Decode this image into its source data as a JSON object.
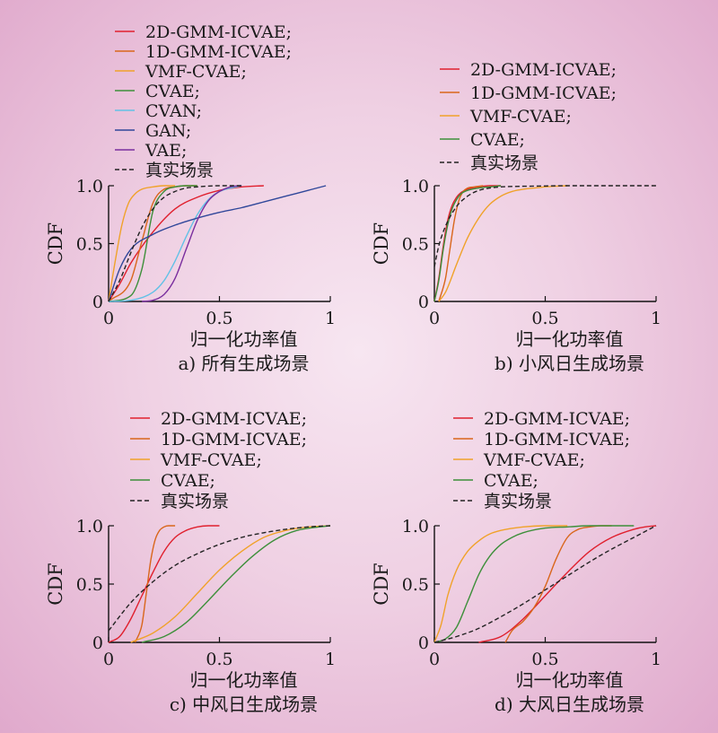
{
  "figure": {
    "colors": {
      "2D-GMM-ICVAE": "#e0202e",
      "1D-GMM-ICVAE": "#d9661b",
      "VMF-CVAE": "#f0a22a",
      "CVAE": "#3d8f3a",
      "CVAN": "#62c1e6",
      "GAN": "#30479a",
      "VAE": "#7a2e9e",
      "real": "#222222"
    }
  },
  "chart_data": [
    {
      "type": "line",
      "caption": "a) 所有生成场景",
      "xlabel": "归一化功率值",
      "ylabel": "CDF",
      "xlim": [
        0,
        1
      ],
      "ylim": [
        0,
        1
      ],
      "x_ticks": [
        "0",
        "0.5",
        "1"
      ],
      "y_ticks": [
        "0",
        "0.5",
        "1.0"
      ],
      "legend": [
        "2D-GMM-ICVAE;",
        "1D-GMM-ICVAE;",
        "VMF-CVAE;",
        "CVAE;",
        "CVAN;",
        "GAN;",
        "VAE;",
        "真实场景"
      ],
      "grid": false,
      "series": [
        {
          "name": "2D-GMM-ICVAE",
          "x": [
            0,
            0.05,
            0.1,
            0.2,
            0.3,
            0.4,
            0.5,
            0.6,
            0.7
          ],
          "y": [
            0,
            0.15,
            0.33,
            0.6,
            0.8,
            0.9,
            0.96,
            0.99,
            1
          ]
        },
        {
          "name": "1D-GMM-ICVAE",
          "x": [
            0,
            0.1,
            0.15,
            0.2,
            0.25,
            0.3,
            0.35,
            0.4
          ],
          "y": [
            0,
            0.18,
            0.52,
            0.85,
            0.97,
            0.99,
            1,
            1
          ]
        },
        {
          "name": "VMF-CVAE",
          "x": [
            0,
            0.03,
            0.06,
            0.09,
            0.12,
            0.15,
            0.2,
            0.25,
            0.3
          ],
          "y": [
            0,
            0.35,
            0.66,
            0.85,
            0.93,
            0.97,
            0.99,
            1,
            1
          ]
        },
        {
          "name": "CVAE",
          "x": [
            0,
            0.1,
            0.15,
            0.2,
            0.25,
            0.3,
            0.35,
            0.4
          ],
          "y": [
            0,
            0.05,
            0.28,
            0.78,
            0.95,
            0.99,
            1,
            1
          ]
        },
        {
          "name": "CVAN",
          "x": [
            0,
            0.1,
            0.2,
            0.25,
            0.3,
            0.35,
            0.4,
            0.45,
            0.5,
            0.6
          ],
          "y": [
            0,
            0.01,
            0.08,
            0.18,
            0.35,
            0.56,
            0.75,
            0.88,
            0.95,
            1
          ]
        },
        {
          "name": "GAN",
          "x": [
            0,
            0.05,
            0.1,
            0.2,
            0.3,
            0.4,
            0.5,
            0.6,
            0.7,
            0.8,
            0.9,
            0.98
          ],
          "y": [
            0,
            0.28,
            0.45,
            0.58,
            0.66,
            0.72,
            0.77,
            0.81,
            0.86,
            0.91,
            0.96,
            1
          ]
        },
        {
          "name": "VAE",
          "x": [
            0.15,
            0.2,
            0.25,
            0.3,
            0.35,
            0.4,
            0.45,
            0.5,
            0.55,
            0.6
          ],
          "y": [
            0,
            0.01,
            0.06,
            0.2,
            0.45,
            0.7,
            0.87,
            0.95,
            0.99,
            1
          ]
        },
        {
          "name": "真实场景",
          "x": [
            0,
            0.05,
            0.1,
            0.15,
            0.2,
            0.25,
            0.3,
            0.35,
            0.4,
            0.5,
            0.6
          ],
          "y": [
            0,
            0.18,
            0.42,
            0.64,
            0.8,
            0.9,
            0.95,
            0.98,
            0.99,
            1,
            1
          ]
        }
      ]
    },
    {
      "type": "line",
      "caption": "b) 小风日生成场景",
      "xlabel": "归一化功率值",
      "ylabel": "CDF",
      "xlim": [
        0,
        1
      ],
      "ylim": [
        0,
        1
      ],
      "x_ticks": [
        "0",
        "0.5",
        "1"
      ],
      "y_ticks": [
        "0",
        "0.5",
        "1.0"
      ],
      "legend": [
        "2D-GMM-ICVAE;",
        "1D-GMM-ICVAE;",
        "VMF-CVAE;",
        "CVAE;",
        "真实场景"
      ],
      "grid": false,
      "series": [
        {
          "name": "2D-GMM-ICVAE",
          "x": [
            0,
            0.02,
            0.04,
            0.06,
            0.08,
            0.1,
            0.12,
            0.15,
            0.2,
            0.25,
            0.3
          ],
          "y": [
            0,
            0.2,
            0.48,
            0.7,
            0.83,
            0.9,
            0.94,
            0.97,
            0.99,
            1,
            1
          ]
        },
        {
          "name": "1D-GMM-ICVAE",
          "x": [
            0.02,
            0.05,
            0.07,
            0.09,
            0.11,
            0.13,
            0.15,
            0.18,
            0.22
          ],
          "y": [
            0,
            0.2,
            0.45,
            0.7,
            0.87,
            0.95,
            0.98,
            0.99,
            1
          ]
        },
        {
          "name": "VMF-CVAE",
          "x": [
            0.02,
            0.05,
            0.1,
            0.15,
            0.2,
            0.25,
            0.3,
            0.35,
            0.4,
            0.45,
            0.5,
            0.6
          ],
          "y": [
            0,
            0.08,
            0.32,
            0.55,
            0.72,
            0.84,
            0.91,
            0.95,
            0.97,
            0.98,
            0.99,
            1
          ]
        },
        {
          "name": "CVAE",
          "x": [
            0,
            0.02,
            0.04,
            0.06,
            0.08,
            0.1,
            0.12,
            0.15,
            0.2,
            0.25,
            0.3
          ],
          "y": [
            0,
            0.18,
            0.45,
            0.66,
            0.8,
            0.88,
            0.93,
            0.96,
            0.98,
            0.99,
            1
          ]
        },
        {
          "name": "真实场景",
          "x": [
            0,
            0.02,
            0.05,
            0.1,
            0.15,
            0.2,
            0.25,
            0.3,
            0.4,
            0.5,
            0.6,
            0.7,
            1
          ],
          "y": [
            0.3,
            0.48,
            0.65,
            0.82,
            0.91,
            0.96,
            0.98,
            0.99,
            0.995,
            0.998,
            1,
            1,
            1
          ]
        }
      ]
    },
    {
      "type": "line",
      "caption": "c) 中风日生成场景",
      "xlabel": "归一化功率值",
      "ylabel": "CDF",
      "xlim": [
        0,
        1
      ],
      "ylim": [
        0,
        1
      ],
      "x_ticks": [
        "0",
        "0.5",
        "1"
      ],
      "y_ticks": [
        "0",
        "0.5",
        "1.0"
      ],
      "legend": [
        "2D-GMM-ICVAE;",
        "1D-GMM-ICVAE;",
        "VMF-CVAE;",
        "CVAE;",
        "真实场景"
      ],
      "grid": false,
      "series": [
        {
          "name": "2D-GMM-ICVAE",
          "x": [
            0,
            0.05,
            0.1,
            0.15,
            0.2,
            0.25,
            0.3,
            0.35,
            0.4,
            0.45,
            0.5
          ],
          "y": [
            0,
            0.05,
            0.2,
            0.4,
            0.6,
            0.78,
            0.9,
            0.96,
            0.99,
            1,
            1
          ]
        },
        {
          "name": "1D-GMM-ICVAE",
          "x": [
            0.12,
            0.15,
            0.17,
            0.19,
            0.21,
            0.23,
            0.25,
            0.27,
            0.3
          ],
          "y": [
            0,
            0.15,
            0.42,
            0.7,
            0.88,
            0.96,
            0.99,
            1,
            1
          ]
        },
        {
          "name": "VMF-CVAE",
          "x": [
            0.1,
            0.2,
            0.3,
            0.4,
            0.5,
            0.6,
            0.7,
            0.8,
            0.9,
            1
          ],
          "y": [
            0,
            0.08,
            0.22,
            0.42,
            0.62,
            0.78,
            0.9,
            0.96,
            0.99,
            1
          ]
        },
        {
          "name": "CVAE",
          "x": [
            0.15,
            0.25,
            0.35,
            0.45,
            0.55,
            0.65,
            0.75,
            0.85,
            0.95,
            1
          ],
          "y": [
            0,
            0.05,
            0.17,
            0.36,
            0.56,
            0.74,
            0.88,
            0.96,
            0.99,
            1
          ]
        },
        {
          "name": "真实场景",
          "x": [
            0,
            0.1,
            0.2,
            0.3,
            0.4,
            0.5,
            0.6,
            0.7,
            0.8,
            0.9,
            1
          ],
          "y": [
            0.1,
            0.34,
            0.52,
            0.66,
            0.76,
            0.84,
            0.9,
            0.94,
            0.97,
            0.99,
            1
          ]
        }
      ]
    },
    {
      "type": "line",
      "caption": "d) 大风日生成场景",
      "xlabel": "归一化功率值",
      "ylabel": "CDF",
      "xlim": [
        0,
        1
      ],
      "ylim": [
        0,
        1
      ],
      "x_ticks": [
        "0",
        "0.5",
        "1"
      ],
      "y_ticks": [
        "0",
        "0.5",
        "1.0"
      ],
      "legend": [
        "2D-GMM-ICVAE;",
        "1D-GMM-ICVAE;",
        "VMF-CVAE;",
        "CVAE;",
        "真实场景"
      ],
      "grid": false,
      "series": [
        {
          "name": "2D-GMM-ICVAE",
          "x": [
            0.2,
            0.3,
            0.4,
            0.5,
            0.6,
            0.7,
            0.8,
            0.9,
            0.95,
            1
          ],
          "y": [
            0,
            0.05,
            0.2,
            0.4,
            0.6,
            0.78,
            0.9,
            0.97,
            0.99,
            1
          ]
        },
        {
          "name": "1D-GMM-ICVAE",
          "x": [
            0.32,
            0.35,
            0.4,
            0.45,
            0.5,
            0.55,
            0.6,
            0.65,
            0.7,
            0.75,
            0.8
          ],
          "y": [
            0,
            0.1,
            0.18,
            0.3,
            0.48,
            0.72,
            0.9,
            0.97,
            0.99,
            1,
            1
          ]
        },
        {
          "name": "VMF-CVAE",
          "x": [
            0,
            0.03,
            0.06,
            0.1,
            0.15,
            0.2,
            0.25,
            0.3,
            0.4,
            0.5,
            0.6
          ],
          "y": [
            0,
            0.15,
            0.4,
            0.62,
            0.78,
            0.87,
            0.93,
            0.96,
            0.99,
            1,
            1
          ]
        },
        {
          "name": "CVAE",
          "x": [
            0,
            0.05,
            0.1,
            0.15,
            0.2,
            0.25,
            0.3,
            0.35,
            0.4,
            0.5,
            0.6,
            0.7,
            0.8,
            0.9
          ],
          "y": [
            0,
            0.03,
            0.13,
            0.35,
            0.58,
            0.74,
            0.84,
            0.9,
            0.94,
            0.98,
            0.99,
            1,
            1,
            1
          ]
        },
        {
          "name": "真实场景",
          "x": [
            0,
            0.1,
            0.2,
            0.3,
            0.4,
            0.5,
            0.6,
            0.7,
            0.8,
            0.9,
            1
          ],
          "y": [
            0,
            0.05,
            0.12,
            0.22,
            0.33,
            0.45,
            0.57,
            0.69,
            0.8,
            0.9,
            1
          ]
        }
      ]
    }
  ]
}
